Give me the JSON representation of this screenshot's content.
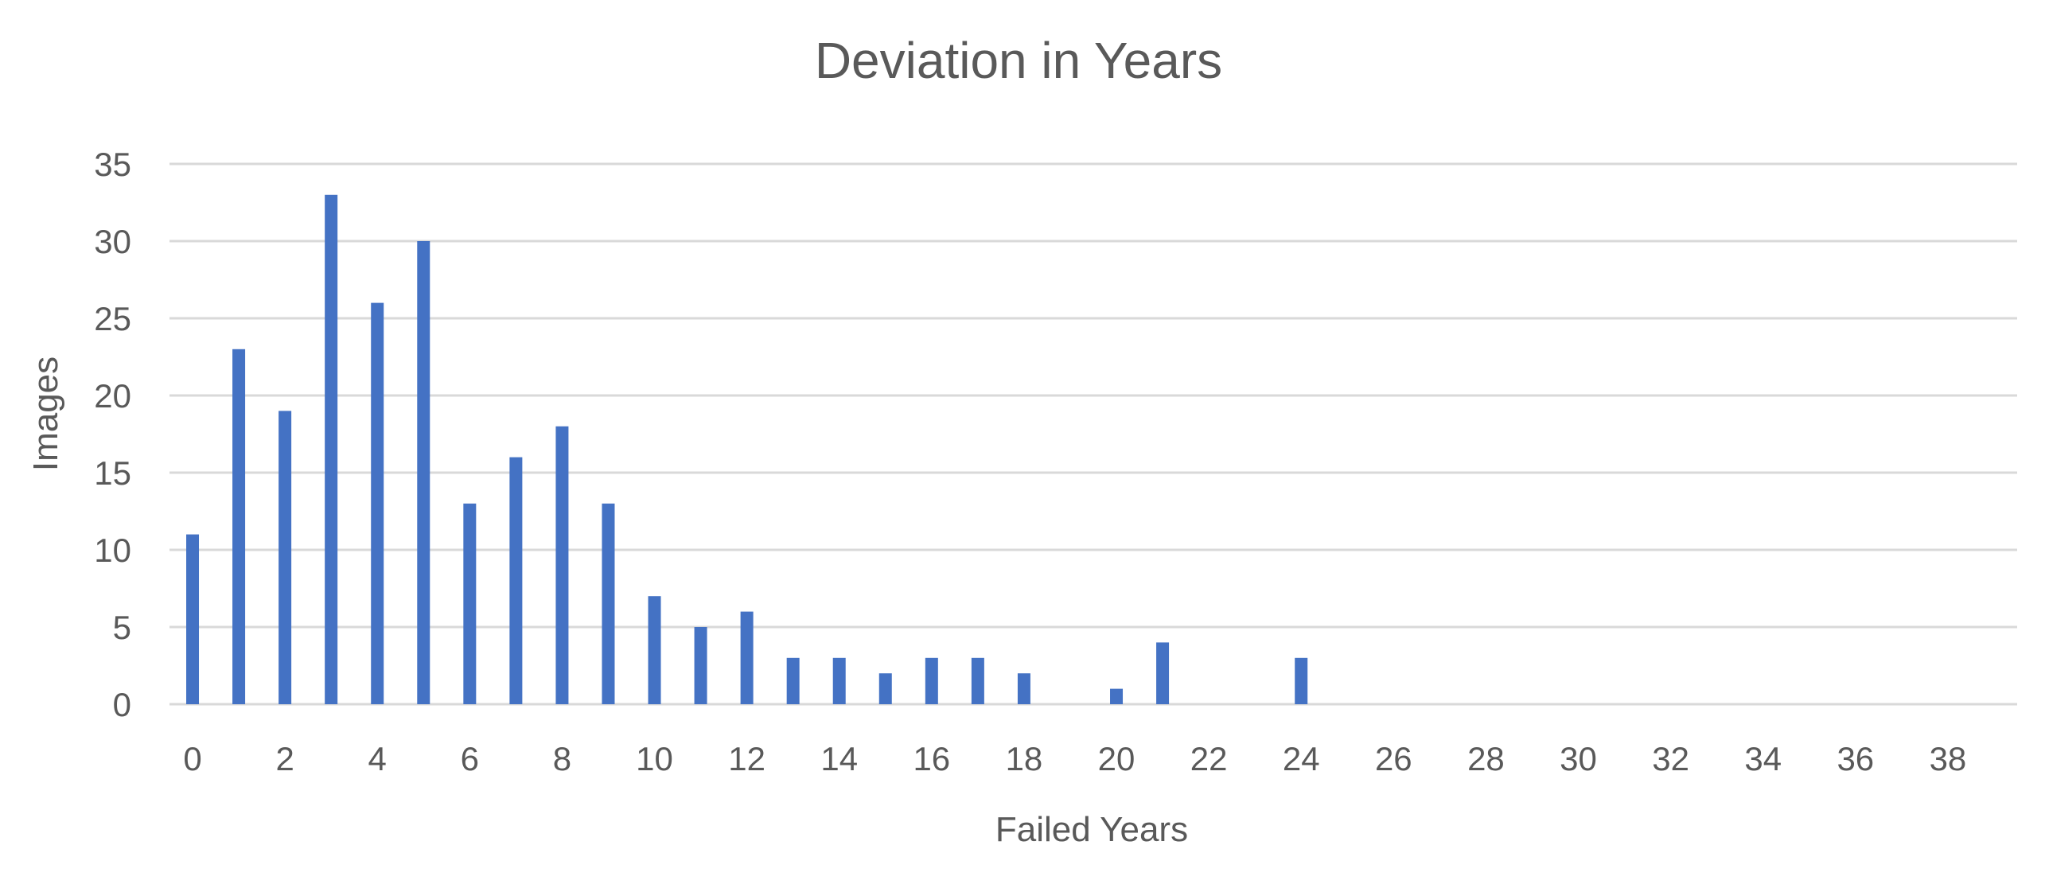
{
  "chart_data": {
    "type": "bar",
    "title": "Deviation in Years",
    "xlabel": "Failed Years",
    "ylabel": "Images",
    "ylim": [
      0,
      35
    ],
    "yticks": [
      0,
      5,
      10,
      15,
      20,
      25,
      30,
      35
    ],
    "xticks": [
      "0",
      "2",
      "4",
      "6",
      "8",
      "10",
      "12",
      "14",
      "16",
      "18",
      "20",
      "22",
      "24",
      "26",
      "28",
      "30",
      "32",
      "34",
      "36",
      "38"
    ],
    "categories": [
      0,
      1,
      2,
      3,
      4,
      5,
      6,
      7,
      8,
      9,
      10,
      11,
      12,
      13,
      14,
      15,
      16,
      17,
      18,
      19,
      20,
      21,
      22,
      23,
      24,
      25,
      26,
      27,
      28,
      29,
      30,
      31,
      32,
      33,
      34,
      35,
      36,
      37,
      38,
      39
    ],
    "values": [
      11,
      23,
      19,
      33,
      26,
      30,
      13,
      16,
      18,
      13,
      7,
      5,
      6,
      3,
      3,
      2,
      3,
      3,
      2,
      0,
      1,
      4,
      0,
      0,
      3,
      0,
      0,
      0,
      0,
      0,
      0,
      0,
      0,
      0,
      0,
      0,
      0,
      0,
      0,
      0
    ],
    "grid": true,
    "colors": {
      "bar": "#4472C4",
      "grid": "#d9d9d9",
      "text": "#595959"
    }
  }
}
